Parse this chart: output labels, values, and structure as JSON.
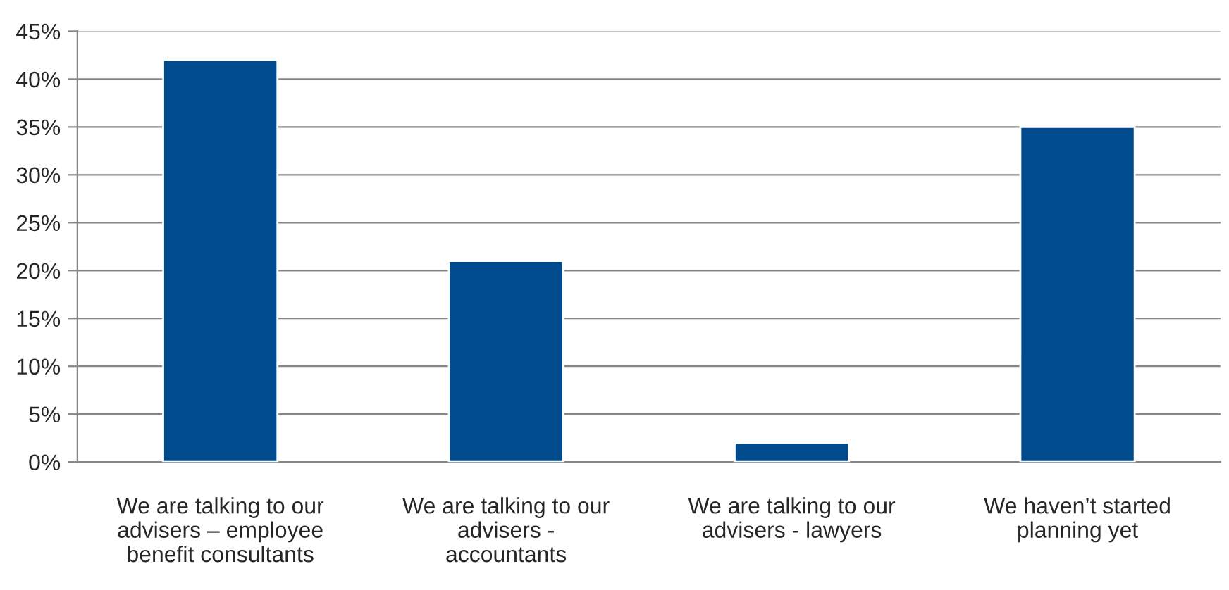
{
  "chart_data": {
    "type": "bar",
    "categories": [
      "We are talking to our\nadvisers – employee\nbenefit consultants",
      "We are talking to our\nadvisers -\naccountants",
      "We are talking to our\nadvisers - lawyers",
      "We haven’t started\nplanning yet"
    ],
    "values": [
      42,
      21,
      2,
      35
    ],
    "color": "#004b8d",
    "ylim": [
      0,
      45
    ],
    "yticks": [
      {
        "value": 0,
        "label": "0%"
      },
      {
        "value": 5,
        "label": "5%"
      },
      {
        "value": 10,
        "label": "10%"
      },
      {
        "value": 15,
        "label": "15%"
      },
      {
        "value": 20,
        "label": "20%"
      },
      {
        "value": 25,
        "label": "25%"
      },
      {
        "value": 30,
        "label": "30%"
      },
      {
        "value": 35,
        "label": "35%"
      },
      {
        "value": 40,
        "label": "40%"
      },
      {
        "value": 45,
        "label": "45%"
      }
    ],
    "grid": "y"
  }
}
